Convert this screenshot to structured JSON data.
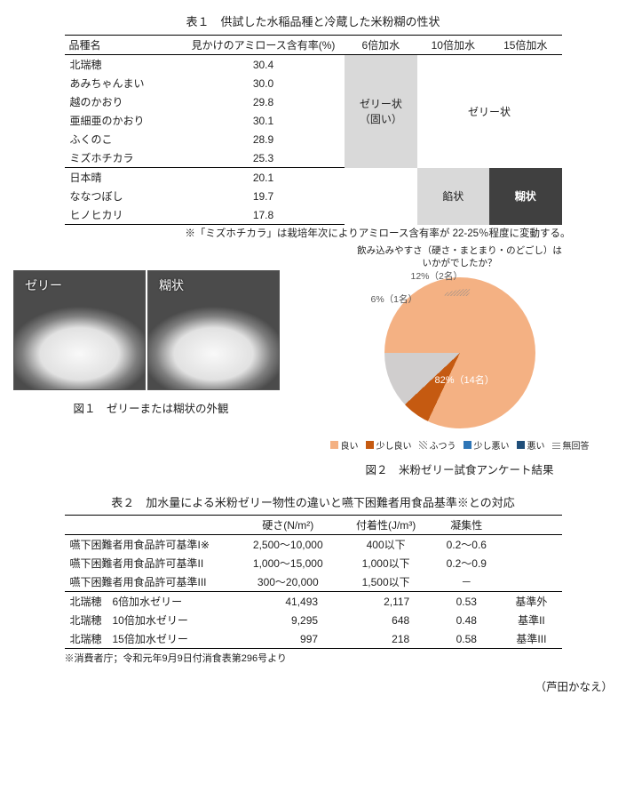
{
  "table1": {
    "title": "表１　供試した水稲品種と冷蔵した米粉糊の性状",
    "headers": {
      "name": "品種名",
      "amylose": "見かけのアミロース含有率(%)",
      "w6": "6倍加水",
      "w10": "10倍加水",
      "w15": "15倍加水"
    },
    "group_a": [
      {
        "name": "北瑞穂",
        "val": "30.4"
      },
      {
        "name": "あみちゃんまい",
        "val": "30.0"
      },
      {
        "name": "越のかおり",
        "val": "29.8"
      },
      {
        "name": "亜細亜のかおり",
        "val": "30.1"
      },
      {
        "name": "ふくのこ",
        "val": "28.9"
      },
      {
        "name": "ミズホチカラ",
        "val": "25.3"
      }
    ],
    "group_b": [
      {
        "name": "日本晴",
        "val": "20.1"
      },
      {
        "name": "ななつぼし",
        "val": "19.7"
      },
      {
        "name": "ヒノヒカリ",
        "val": "17.8"
      }
    ],
    "cell_6x_a": "ゼリー状\n（固い）",
    "cell_10x15x_a": "ゼリー状",
    "cell_10x_b": "餡状",
    "cell_15x_b": "糊状",
    "note": "※「ミズホチカラ」は栽培年次によりアミロース含有率が 22-25％程度に変動する。",
    "cell_bg_gray": "#d9d9d9",
    "cell_bg_dark": "#404040"
  },
  "fig1": {
    "label_left": "ゼリー",
    "label_right": "糊状",
    "caption": "図１　ゼリーまたは糊状の外観"
  },
  "fig2": {
    "title": "飲み込みやすさ（硬さ・まとまり・のどごし）は\nいかがでしたか？",
    "slices": [
      {
        "label": "良い",
        "value": 82,
        "n": 14,
        "color": "#f4b183"
      },
      {
        "label": "少し良い",
        "value": 6,
        "n": 1,
        "color": "#c55a11"
      },
      {
        "label": "ふつう",
        "value": 12,
        "n": 2,
        "color": "#d0cece",
        "pattern": "hatch"
      },
      {
        "label": "少し悪い",
        "value": 0,
        "color": "#2e75b6"
      },
      {
        "label": "悪い",
        "value": 0,
        "color": "#1f4e79"
      },
      {
        "label": "無回答",
        "value": 0,
        "color": "#aaaaaa",
        "pattern": "line"
      }
    ],
    "label_82": "82%（14名）",
    "label_6": "6%（1名）",
    "label_12": "12%（2名）",
    "caption": "図２　米粉ゼリー試食アンケート結果",
    "legend_labels": [
      "良い",
      "少し良い",
      "ふつう",
      "少し悪い",
      "悪い",
      "無回答"
    ],
    "pie_start_deg": -90
  },
  "table2": {
    "title": "表２　加水量による米粉ゼリー物性の違いと嚥下困難者用食品基準※との対応",
    "headers": {
      "blank": "",
      "hard": "硬さ(N/m²)",
      "adh": "付着性(J/m³)",
      "coh": "凝集性"
    },
    "std_rows": [
      {
        "name": "嚥下困難者用食品許可基準I※",
        "hard": "2,500～10,000",
        "adh": "400以下",
        "coh": "0.2～0.6"
      },
      {
        "name": "嚥下困難者用食品許可基準II",
        "hard": "1,000～15,000",
        "adh": "1,000以下",
        "coh": "0.2～0.9"
      },
      {
        "name": "嚥下困難者用食品許可基準III",
        "hard": "300～20,000",
        "adh": "1,500以下",
        "coh": "－"
      }
    ],
    "jelly_rows": [
      {
        "name": "北瑞穂　6倍加水ゼリー",
        "hard": "41,493",
        "adh": "2,117",
        "coh": "0.53",
        "rank": "基準外"
      },
      {
        "name": "北瑞穂　10倍加水ゼリー",
        "hard": "9,295",
        "adh": "648",
        "coh": "0.48",
        "rank": "基準II"
      },
      {
        "name": "北瑞穂　15倍加水ゼリー",
        "hard": "997",
        "adh": "218",
        "coh": "0.58",
        "rank": "基準III"
      }
    ],
    "note": "※消費者庁；令和元年9月9日付消食表第296号より"
  },
  "author": "（芦田かなえ）"
}
